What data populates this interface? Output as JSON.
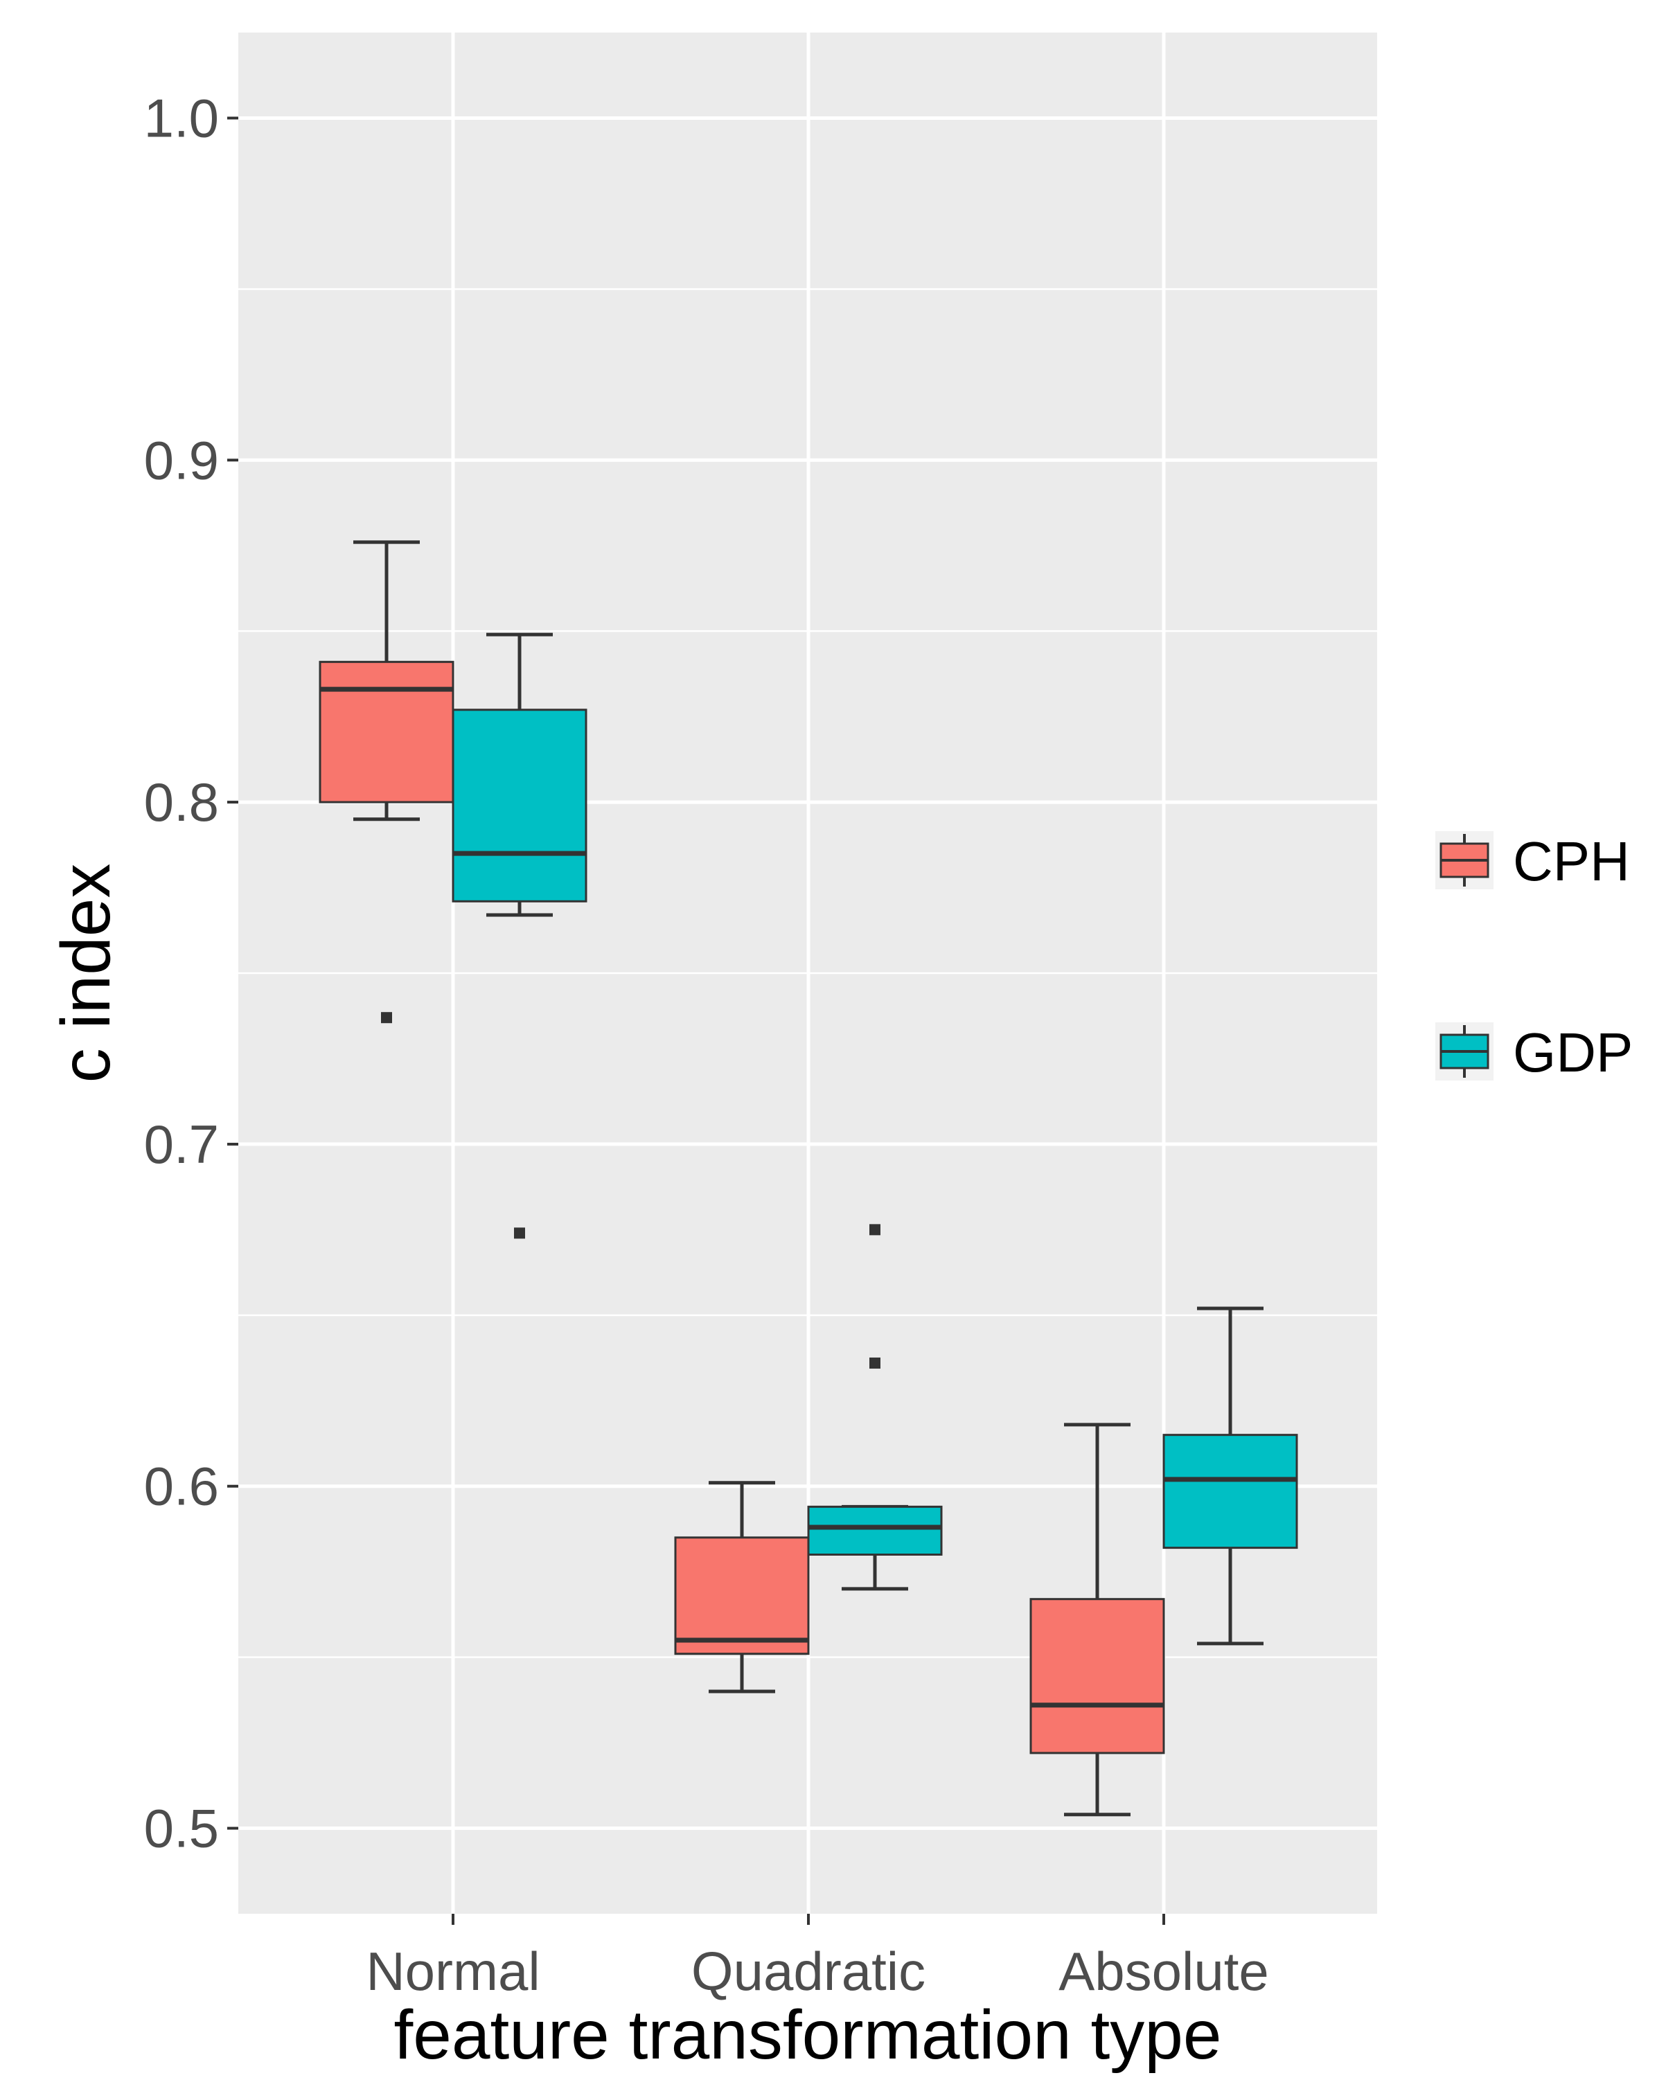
{
  "chart_data": {
    "type": "boxplot",
    "title": "",
    "xlabel": "feature transformation type",
    "ylabel": "c index",
    "categories": [
      "Normal",
      "Quadratic",
      "Absolute"
    ],
    "ylim": [
      0.475,
      1.025
    ],
    "yticks": [
      0.5,
      0.6,
      0.7,
      0.8,
      0.9,
      1.0
    ],
    "ytick_labels": [
      "0.5",
      "0.6",
      "0.7",
      "0.8",
      "0.9",
      "1.0"
    ],
    "grid": true,
    "legend_position": "right",
    "series": [
      {
        "name": "CPH",
        "color": "#F8766D",
        "boxes": [
          {
            "category": "Normal",
            "whisker_low": 0.795,
            "q1": 0.8,
            "median": 0.833,
            "q3": 0.841,
            "whisker_high": 0.876,
            "outliers": [
              0.737
            ]
          },
          {
            "category": "Quadratic",
            "whisker_low": 0.54,
            "q1": 0.551,
            "median": 0.555,
            "q3": 0.585,
            "whisker_high": 0.601,
            "outliers": []
          },
          {
            "category": "Absolute",
            "whisker_low": 0.504,
            "q1": 0.522,
            "median": 0.536,
            "q3": 0.567,
            "whisker_high": 0.618,
            "outliers": []
          }
        ]
      },
      {
        "name": "GDP",
        "color": "#00BFC4",
        "boxes": [
          {
            "category": "Normal",
            "whisker_low": 0.767,
            "q1": 0.771,
            "median": 0.785,
            "q3": 0.827,
            "whisker_high": 0.849,
            "outliers": [
              0.674
            ]
          },
          {
            "category": "Quadratic",
            "whisker_low": 0.57,
            "q1": 0.58,
            "median": 0.588,
            "q3": 0.594,
            "whisker_high": 0.594,
            "outliers": [
              0.675,
              0.636
            ]
          },
          {
            "category": "Absolute",
            "whisker_low": 0.554,
            "q1": 0.582,
            "median": 0.602,
            "q3": 0.615,
            "whisker_high": 0.652,
            "outliers": []
          }
        ]
      }
    ]
  },
  "colors": {
    "panel_background": "#EBEBEB",
    "grid": "#FFFFFF",
    "box_outline": "#333333",
    "tick_text": "#4D4D4D"
  }
}
